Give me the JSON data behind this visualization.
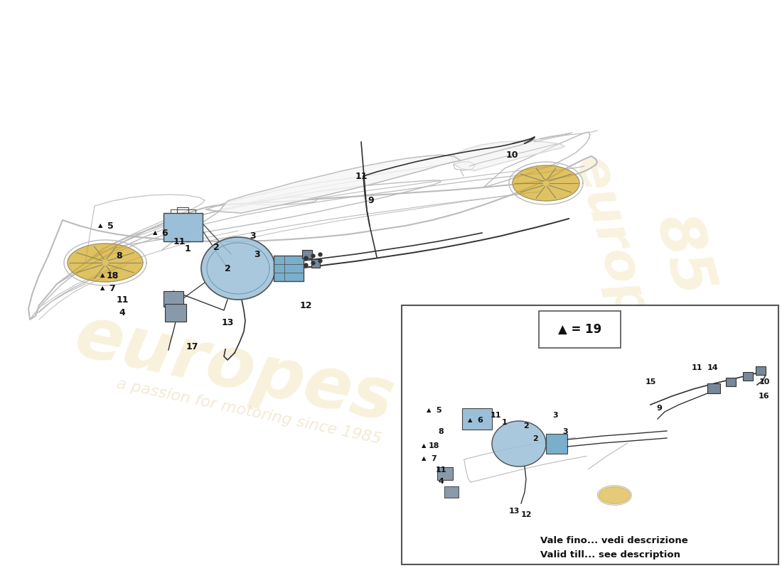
{
  "bg_color": "#FFFFFF",
  "car_color": "#BBBBBB",
  "component_color": "#8BAFD4",
  "line_color": "#333333",
  "legend_text": "▲ = 19",
  "inset_caption_it": "Vale fino... vedi descrizione",
  "inset_caption_en": "Valid till... see description",
  "watermark1": "europes",
  "watermark2": "a passion for motoring since 1985",
  "figsize": [
    11.0,
    8.0
  ],
  "dpi": 100
}
